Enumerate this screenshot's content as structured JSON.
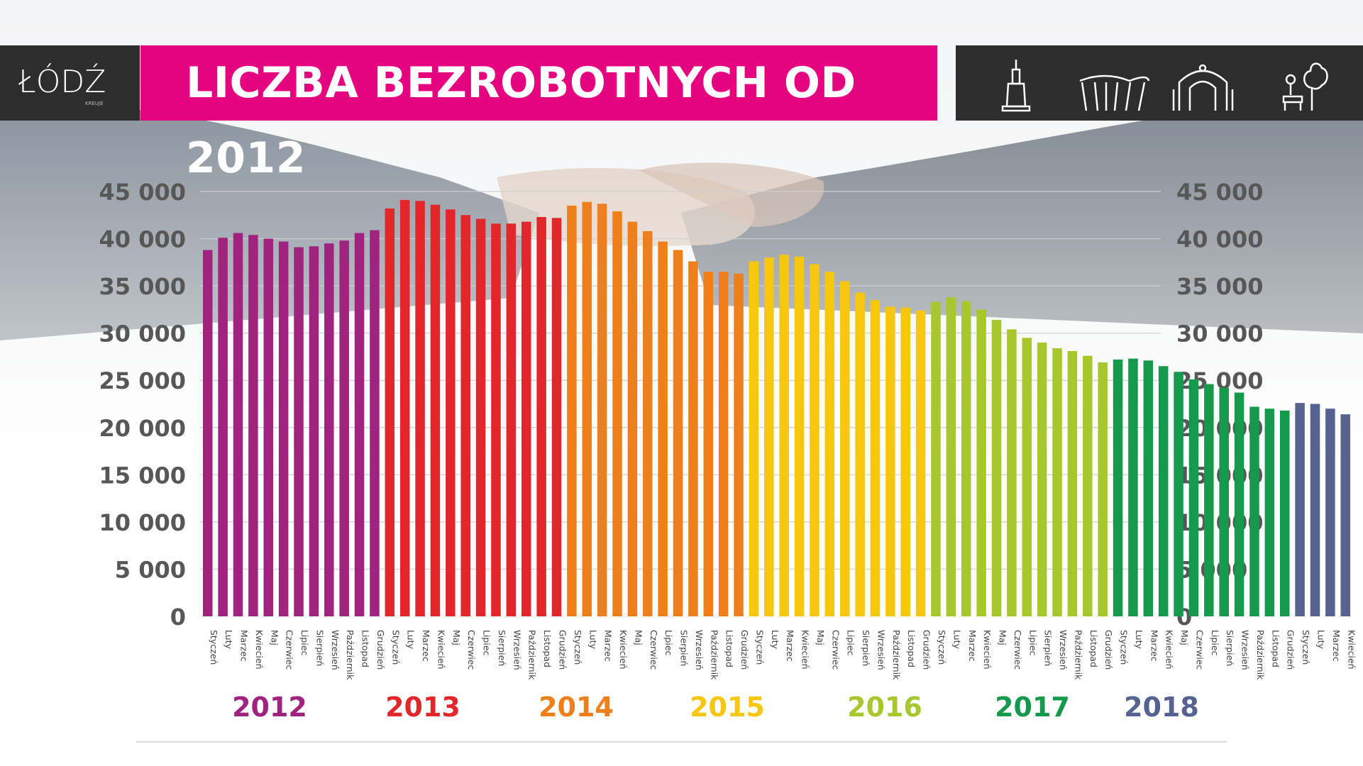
{
  "header": {
    "title": "LICZBA BEZROBOTNYCH OD 2012",
    "logo_text": "ŁÓDŹ",
    "logo_subtext": "KREUJE",
    "icons": [
      "monument-icon",
      "arches-icon",
      "gate-icon",
      "park-bench-icon"
    ]
  },
  "colors": {
    "title_bg": "#e6037f",
    "header_bg": "#2d2d2d",
    "years": {
      "2012": "#a0237f",
      "2013": "#e2262a",
      "2014": "#ef7f1a",
      "2015": "#f7c60f",
      "2016": "#a6c82d",
      "2017": "#15994a",
      "2018": "#56628f"
    }
  },
  "chart_data": {
    "type": "bar",
    "ylim": [
      0,
      45000
    ],
    "yticks": [
      "45 000",
      "40 000",
      "35 000",
      "30 000",
      "25 000",
      "20 000",
      "15 000",
      "10 000",
      "5 000",
      "0"
    ],
    "ytick_values": [
      45000,
      40000,
      35000,
      30000,
      25000,
      20000,
      15000,
      10000,
      5000,
      0
    ],
    "grid": true,
    "years": [
      "2012",
      "2013",
      "2014",
      "2015",
      "2016",
      "2017",
      "2018"
    ],
    "months": [
      "Styczeń",
      "Luty",
      "Marzec",
      "Kwiecień",
      "Maj",
      "Czerwiec",
      "Lipiec",
      "Sierpień",
      "Wrzesień",
      "Październik",
      "Listopad",
      "Grudzień"
    ],
    "series": [
      {
        "year": "2012",
        "categories": [
          "Styczeń",
          "Luty",
          "Marzec",
          "Kwiecień",
          "Maj",
          "Czerwiec",
          "Lipiec",
          "Sierpień",
          "Wrzesień",
          "Październik",
          "Listopad",
          "Grudzień"
        ],
        "values": [
          38800,
          40100,
          40600,
          40400,
          40000,
          39700,
          39100,
          39200,
          39500,
          39800,
          40600,
          40900
        ]
      },
      {
        "year": "2013",
        "categories": [
          "Styczeń",
          "Luty",
          "Marzec",
          "Kwiecień",
          "Maj",
          "Czerwiec",
          "Lipiec",
          "Sierpień",
          "Wrzesień",
          "Październik",
          "Listopad",
          "Grudzień"
        ],
        "values": [
          43200,
          44100,
          44000,
          43600,
          43100,
          42500,
          42100,
          41600,
          41600,
          41800,
          42300,
          42200
        ]
      },
      {
        "year": "2014",
        "categories": [
          "Styczeń",
          "Luty",
          "Marzec",
          "Kwiecień",
          "Maj",
          "Czerwiec",
          "Lipiec",
          "Sierpień",
          "Wrzesień",
          "Październik",
          "Listopad",
          "Grudzień"
        ],
        "values": [
          43500,
          43900,
          43700,
          42900,
          41800,
          40800,
          39700,
          38800,
          37600,
          36500,
          36500,
          36300
        ]
      },
      {
        "year": "2015",
        "categories": [
          "Styczeń",
          "Luty",
          "Marzec",
          "Kwiecień",
          "Maj",
          "Czerwiec",
          "Lipiec",
          "Sierpień",
          "Wrzesień",
          "Październik",
          "Listopad",
          "Grudzień"
        ],
        "values": [
          37600,
          38000,
          38300,
          38100,
          37300,
          36500,
          35500,
          34300,
          33500,
          32800,
          32700,
          32400
        ]
      },
      {
        "year": "2016",
        "categories": [
          "Styczeń",
          "Luty",
          "Marzec",
          "Kwiecień",
          "Maj",
          "Czerwiec",
          "Lipiec",
          "Sierpień",
          "Wrzesień",
          "Październik",
          "Listopad",
          "Grudzień"
        ],
        "values": [
          33300,
          33800,
          33400,
          32500,
          31400,
          30400,
          29500,
          29000,
          28400,
          28100,
          27600,
          26900
        ]
      },
      {
        "year": "2017",
        "categories": [
          "Styczeń",
          "Luty",
          "Marzec",
          "Kwiecień",
          "Maj",
          "Czerwiec",
          "Lipiec",
          "Sierpień",
          "Wrzesień",
          "Październik",
          "Listopad",
          "Grudzień"
        ],
        "values": [
          27200,
          27300,
          27100,
          26500,
          25900,
          25100,
          24600,
          24200,
          23700,
          22200,
          22000,
          21800
        ]
      },
      {
        "year": "2018",
        "categories": [
          "Styczeń",
          "Luty",
          "Marzec",
          "Kwiecień"
        ],
        "values": [
          22600,
          22500,
          22000,
          21400
        ]
      }
    ]
  }
}
